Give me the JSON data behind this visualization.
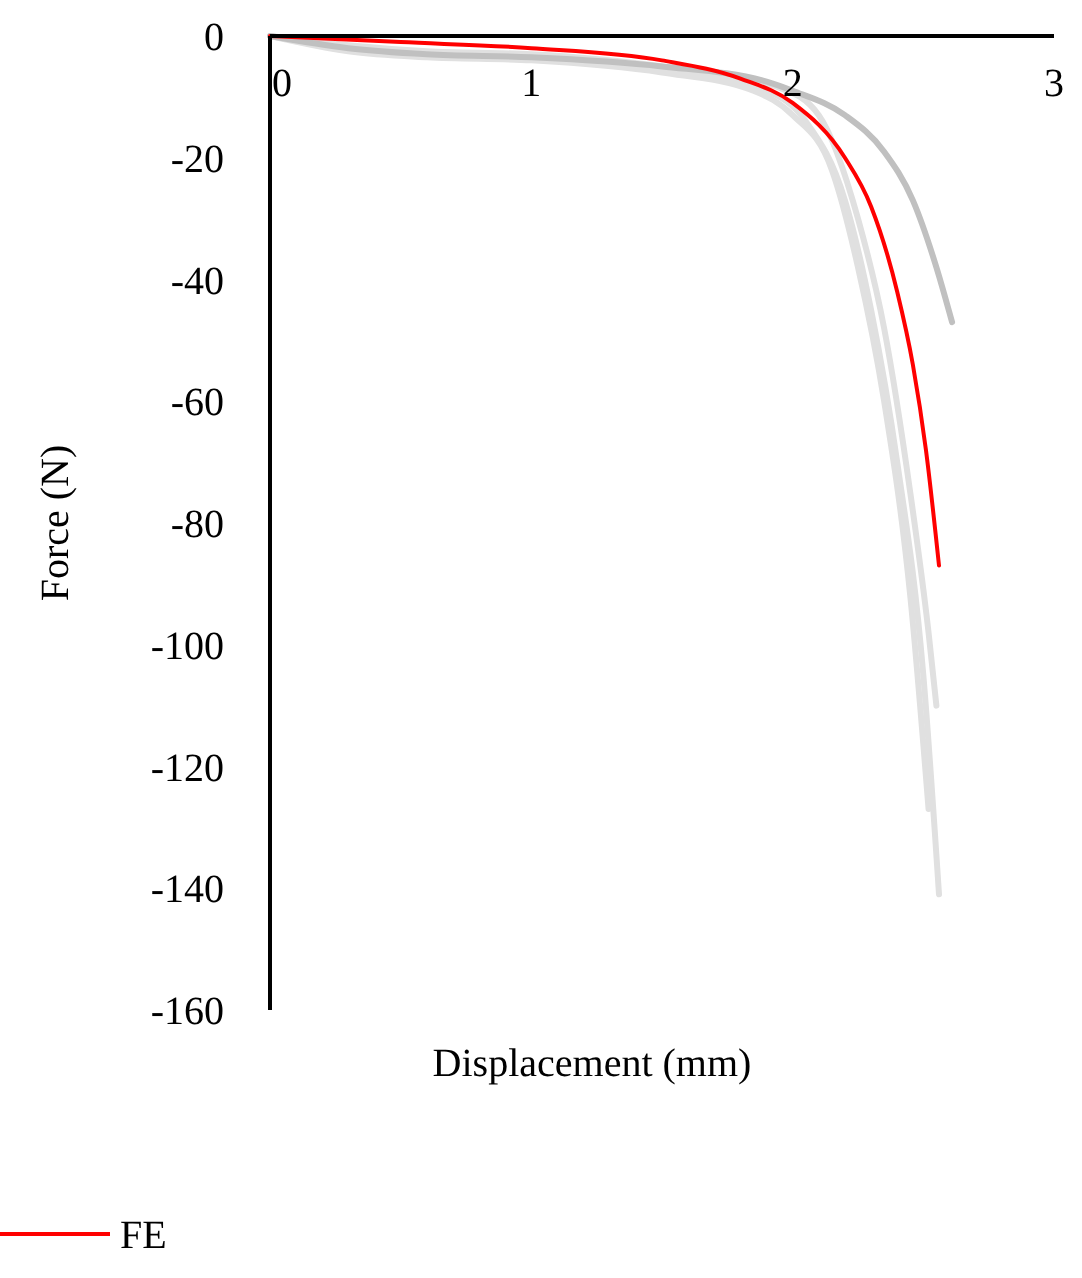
{
  "chart_data": {
    "type": "line",
    "xlabel": "Displacement (mm)",
    "ylabel": "Force (N)",
    "xlim": [
      0,
      3
    ],
    "ylim": [
      -160,
      0
    ],
    "xticks": [
      0,
      1,
      2,
      3
    ],
    "yticks": [
      0,
      -20,
      -40,
      -60,
      -80,
      -100,
      -120,
      -140,
      -160
    ],
    "grid": false,
    "legend": "bottom left",
    "marker": "none",
    "line_style": "solid",
    "series": [
      {
        "color": "#e0e0e0",
        "x": [
          0,
          0.3,
          0.6,
          1,
          1.5,
          1.9,
          2.05,
          2.2,
          2.3,
          2.4,
          2.5,
          2.56
        ],
        "values": [
          0,
          -2,
          -3,
          -3.5,
          -5.5,
          -9,
          -14,
          -27,
          -45,
          -70,
          -105,
          -141
        ]
      },
      {
        "color": "#e0e0e0",
        "x": [
          0,
          0.3,
          0.6,
          1,
          1.5,
          1.85,
          2,
          2.15,
          2.25,
          2.35,
          2.45,
          2.52
        ],
        "values": [
          0,
          -2.5,
          -3.5,
          -4,
          -6,
          -9,
          -13,
          -22,
          -38,
          -60,
          -92,
          -127
        ]
      },
      {
        "color": "#e0e0e0",
        "x": [
          0,
          0.3,
          0.6,
          1,
          1.5,
          1.95,
          2.1,
          2.25,
          2.35,
          2.45,
          2.52,
          2.55
        ],
        "values": [
          0,
          -1.5,
          -2.5,
          -3,
          -5,
          -8.5,
          -13,
          -30,
          -48,
          -75,
          -98,
          -110
        ]
      },
      {
        "color": "#c0c0c0",
        "x": [
          0,
          0.3,
          0.6,
          1,
          1.5,
          1.9,
          2,
          2.2,
          2.35,
          2.46,
          2.55,
          2.61
        ],
        "values": [
          0,
          -2,
          -3,
          -3.5,
          -5,
          -7.5,
          -9,
          -13,
          -19,
          -27,
          -38,
          -47
        ]
      },
      {
        "name": "FE",
        "color": "#ff0000",
        "x": [
          0,
          0.5,
          1,
          1.5,
          1.8,
          2,
          2.2,
          2.3,
          2.4,
          2.46,
          2.51,
          2.56
        ],
        "values": [
          0,
          -1,
          -2,
          -4,
          -7,
          -11,
          -20,
          -28,
          -42,
          -54,
          -68,
          -87
        ]
      }
    ]
  }
}
